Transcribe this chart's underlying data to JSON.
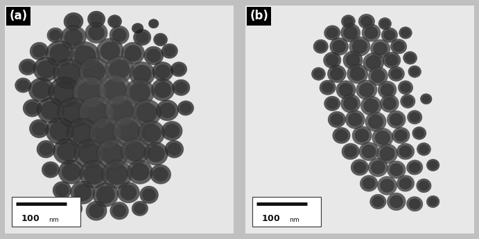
{
  "fig_width": 6.91,
  "fig_height": 3.46,
  "dpi": 100,
  "bg_color": "#c0c0c0",
  "panel_bg": "#e8e8e8",
  "label_a": "(a)",
  "label_b": "(b)",
  "label_bg": "#000000",
  "label_fg": "#ffffff",
  "scalebar_color": "#111111",
  "scalebox_bg": "#ffffff",
  "scalebox_edge": "#333333",
  "particles_a": [
    [
      0.3,
      0.93,
      0.042,
      0.038,
      5,
      0.25
    ],
    [
      0.4,
      0.94,
      0.038,
      0.035,
      -3,
      0.2
    ],
    [
      0.48,
      0.93,
      0.03,
      0.028,
      0,
      0.18
    ],
    [
      0.58,
      0.9,
      0.025,
      0.022,
      5,
      0.15
    ],
    [
      0.65,
      0.92,
      0.022,
      0.02,
      0,
      0.12
    ],
    [
      0.22,
      0.87,
      0.035,
      0.032,
      10,
      0.55
    ],
    [
      0.3,
      0.86,
      0.055,
      0.05,
      8,
      0.7
    ],
    [
      0.4,
      0.88,
      0.048,
      0.045,
      -5,
      0.65
    ],
    [
      0.5,
      0.87,
      0.042,
      0.04,
      0,
      0.6
    ],
    [
      0.6,
      0.86,
      0.038,
      0.035,
      5,
      0.3
    ],
    [
      0.68,
      0.85,
      0.03,
      0.028,
      -5,
      0.22
    ],
    [
      0.15,
      0.8,
      0.04,
      0.038,
      15,
      0.45
    ],
    [
      0.24,
      0.79,
      0.06,
      0.055,
      10,
      0.55
    ],
    [
      0.35,
      0.78,
      0.065,
      0.06,
      -8,
      0.72
    ],
    [
      0.46,
      0.8,
      0.058,
      0.055,
      5,
      0.75
    ],
    [
      0.56,
      0.79,
      0.05,
      0.048,
      0,
      0.65
    ],
    [
      0.65,
      0.78,
      0.042,
      0.04,
      -5,
      0.4
    ],
    [
      0.72,
      0.8,
      0.035,
      0.032,
      8,
      0.28
    ],
    [
      0.1,
      0.73,
      0.038,
      0.035,
      5,
      0.4
    ],
    [
      0.18,
      0.72,
      0.055,
      0.052,
      -5,
      0.5
    ],
    [
      0.28,
      0.7,
      0.068,
      0.065,
      12,
      0.6
    ],
    [
      0.39,
      0.71,
      0.065,
      0.062,
      -3,
      0.8
    ],
    [
      0.5,
      0.72,
      0.062,
      0.058,
      8,
      0.85
    ],
    [
      0.6,
      0.7,
      0.055,
      0.052,
      0,
      0.7
    ],
    [
      0.69,
      0.71,
      0.045,
      0.042,
      -8,
      0.45
    ],
    [
      0.76,
      0.72,
      0.035,
      0.032,
      5,
      0.3
    ],
    [
      0.08,
      0.65,
      0.035,
      0.032,
      0,
      0.35
    ],
    [
      0.16,
      0.63,
      0.055,
      0.052,
      8,
      0.45
    ],
    [
      0.26,
      0.62,
      0.068,
      0.065,
      -5,
      0.55
    ],
    [
      0.37,
      0.62,
      0.072,
      0.068,
      10,
      0.88
    ],
    [
      0.48,
      0.63,
      0.07,
      0.066,
      0,
      0.92
    ],
    [
      0.59,
      0.62,
      0.062,
      0.058,
      -8,
      0.8
    ],
    [
      0.69,
      0.63,
      0.05,
      0.048,
      5,
      0.55
    ],
    [
      0.77,
      0.64,
      0.038,
      0.035,
      0,
      0.35
    ],
    [
      0.12,
      0.55,
      0.04,
      0.038,
      5,
      0.38
    ],
    [
      0.2,
      0.54,
      0.058,
      0.055,
      -3,
      0.5
    ],
    [
      0.3,
      0.53,
      0.068,
      0.065,
      8,
      0.62
    ],
    [
      0.4,
      0.53,
      0.075,
      0.072,
      -5,
      0.85
    ],
    [
      0.51,
      0.54,
      0.072,
      0.068,
      12,
      0.9
    ],
    [
      0.62,
      0.53,
      0.062,
      0.058,
      0,
      0.75
    ],
    [
      0.71,
      0.54,
      0.048,
      0.045,
      -5,
      0.48
    ],
    [
      0.79,
      0.55,
      0.035,
      0.032,
      5,
      0.3
    ],
    [
      0.15,
      0.46,
      0.042,
      0.04,
      0,
      0.35
    ],
    [
      0.24,
      0.45,
      0.06,
      0.058,
      8,
      0.48
    ],
    [
      0.34,
      0.44,
      0.068,
      0.065,
      -5,
      0.6
    ],
    [
      0.44,
      0.44,
      0.07,
      0.068,
      10,
      0.82
    ],
    [
      0.54,
      0.45,
      0.068,
      0.065,
      0,
      0.85
    ],
    [
      0.64,
      0.44,
      0.058,
      0.055,
      -8,
      0.7
    ],
    [
      0.73,
      0.45,
      0.045,
      0.042,
      5,
      0.45
    ],
    [
      0.18,
      0.37,
      0.04,
      0.038,
      5,
      0.35
    ],
    [
      0.27,
      0.36,
      0.058,
      0.055,
      -3,
      0.5
    ],
    [
      0.37,
      0.35,
      0.065,
      0.062,
      8,
      0.65
    ],
    [
      0.47,
      0.35,
      0.068,
      0.065,
      -5,
      0.8
    ],
    [
      0.57,
      0.36,
      0.062,
      0.058,
      12,
      0.75
    ],
    [
      0.66,
      0.35,
      0.052,
      0.05,
      0,
      0.6
    ],
    [
      0.74,
      0.37,
      0.04,
      0.038,
      -5,
      0.38
    ],
    [
      0.2,
      0.28,
      0.038,
      0.035,
      0,
      0.32
    ],
    [
      0.29,
      0.27,
      0.055,
      0.052,
      8,
      0.48
    ],
    [
      0.39,
      0.26,
      0.062,
      0.06,
      -5,
      0.65
    ],
    [
      0.49,
      0.26,
      0.065,
      0.062,
      10,
      0.72
    ],
    [
      0.59,
      0.27,
      0.055,
      0.052,
      0,
      0.62
    ],
    [
      0.68,
      0.26,
      0.045,
      0.042,
      -8,
      0.48
    ],
    [
      0.25,
      0.19,
      0.04,
      0.038,
      5,
      0.35
    ],
    [
      0.34,
      0.18,
      0.052,
      0.05,
      -3,
      0.52
    ],
    [
      0.44,
      0.17,
      0.055,
      0.052,
      8,
      0.62
    ],
    [
      0.54,
      0.18,
      0.048,
      0.045,
      0,
      0.55
    ],
    [
      0.63,
      0.17,
      0.04,
      0.038,
      -5,
      0.42
    ],
    [
      0.3,
      0.11,
      0.038,
      0.035,
      0,
      0.4
    ],
    [
      0.4,
      0.1,
      0.045,
      0.042,
      8,
      0.52
    ],
    [
      0.5,
      0.1,
      0.04,
      0.038,
      -5,
      0.48
    ],
    [
      0.59,
      0.11,
      0.035,
      0.032,
      5,
      0.38
    ]
  ],
  "particles_b": [
    [
      0.45,
      0.93,
      0.03,
      0.028,
      5,
      0.4
    ],
    [
      0.53,
      0.93,
      0.035,
      0.032,
      -3,
      0.55
    ],
    [
      0.61,
      0.92,
      0.028,
      0.026,
      0,
      0.35
    ],
    [
      0.38,
      0.88,
      0.035,
      0.032,
      8,
      0.45
    ],
    [
      0.46,
      0.88,
      0.042,
      0.04,
      -5,
      0.6
    ],
    [
      0.55,
      0.88,
      0.04,
      0.038,
      0,
      0.72
    ],
    [
      0.63,
      0.87,
      0.035,
      0.032,
      5,
      0.55
    ],
    [
      0.7,
      0.88,
      0.028,
      0.026,
      -3,
      0.35
    ],
    [
      0.33,
      0.82,
      0.032,
      0.03,
      5,
      0.4
    ],
    [
      0.41,
      0.82,
      0.04,
      0.038,
      -5,
      0.55
    ],
    [
      0.5,
      0.82,
      0.045,
      0.042,
      8,
      0.75
    ],
    [
      0.59,
      0.81,
      0.042,
      0.04,
      0,
      0.8
    ],
    [
      0.67,
      0.82,
      0.035,
      0.032,
      -5,
      0.5
    ],
    [
      0.38,
      0.76,
      0.038,
      0.035,
      5,
      0.45
    ],
    [
      0.47,
      0.76,
      0.042,
      0.04,
      -3,
      0.6
    ],
    [
      0.56,
      0.75,
      0.045,
      0.042,
      8,
      0.7
    ],
    [
      0.64,
      0.76,
      0.038,
      0.035,
      0,
      0.5
    ],
    [
      0.72,
      0.77,
      0.03,
      0.028,
      -5,
      0.35
    ],
    [
      0.32,
      0.7,
      0.03,
      0.028,
      0,
      0.38
    ],
    [
      0.4,
      0.7,
      0.04,
      0.038,
      5,
      0.55
    ],
    [
      0.49,
      0.7,
      0.045,
      0.042,
      -5,
      0.72
    ],
    [
      0.58,
      0.69,
      0.042,
      0.04,
      8,
      0.8
    ],
    [
      0.66,
      0.7,
      0.035,
      0.032,
      0,
      0.55
    ],
    [
      0.74,
      0.71,
      0.028,
      0.026,
      -3,
      0.38
    ],
    [
      0.36,
      0.64,
      0.035,
      0.032,
      5,
      0.45
    ],
    [
      0.44,
      0.63,
      0.042,
      0.04,
      -5,
      0.62
    ],
    [
      0.53,
      0.63,
      0.045,
      0.042,
      8,
      0.78
    ],
    [
      0.62,
      0.63,
      0.04,
      0.038,
      0,
      0.72
    ],
    [
      0.7,
      0.64,
      0.032,
      0.03,
      -5,
      0.48
    ],
    [
      0.38,
      0.57,
      0.035,
      0.032,
      0,
      0.42
    ],
    [
      0.46,
      0.57,
      0.042,
      0.04,
      5,
      0.65
    ],
    [
      0.55,
      0.56,
      0.045,
      0.042,
      -3,
      0.8
    ],
    [
      0.63,
      0.57,
      0.04,
      0.038,
      8,
      0.75
    ],
    [
      0.71,
      0.58,
      0.032,
      0.03,
      0,
      0.48
    ],
    [
      0.79,
      0.59,
      0.025,
      0.023,
      -5,
      0.32
    ],
    [
      0.4,
      0.5,
      0.038,
      0.035,
      5,
      0.48
    ],
    [
      0.48,
      0.5,
      0.042,
      0.04,
      -5,
      0.7
    ],
    [
      0.57,
      0.49,
      0.045,
      0.042,
      8,
      0.82
    ],
    [
      0.66,
      0.5,
      0.04,
      0.038,
      0,
      0.68
    ],
    [
      0.74,
      0.51,
      0.032,
      0.03,
      -3,
      0.45
    ],
    [
      0.42,
      0.43,
      0.038,
      0.035,
      0,
      0.45
    ],
    [
      0.51,
      0.43,
      0.042,
      0.04,
      5,
      0.72
    ],
    [
      0.6,
      0.42,
      0.045,
      0.042,
      -5,
      0.85
    ],
    [
      0.68,
      0.43,
      0.038,
      0.035,
      8,
      0.65
    ],
    [
      0.76,
      0.44,
      0.03,
      0.028,
      0,
      0.42
    ],
    [
      0.46,
      0.36,
      0.038,
      0.035,
      5,
      0.5
    ],
    [
      0.54,
      0.36,
      0.042,
      0.04,
      -3,
      0.78
    ],
    [
      0.62,
      0.35,
      0.045,
      0.042,
      8,
      0.82
    ],
    [
      0.7,
      0.36,
      0.038,
      0.035,
      0,
      0.62
    ],
    [
      0.78,
      0.37,
      0.03,
      0.028,
      -5,
      0.4
    ],
    [
      0.5,
      0.29,
      0.038,
      0.035,
      0,
      0.55
    ],
    [
      0.58,
      0.29,
      0.042,
      0.04,
      5,
      0.78
    ],
    [
      0.66,
      0.28,
      0.04,
      0.038,
      -5,
      0.8
    ],
    [
      0.74,
      0.29,
      0.035,
      0.032,
      8,
      0.55
    ],
    [
      0.82,
      0.3,
      0.028,
      0.026,
      0,
      0.35
    ],
    [
      0.54,
      0.22,
      0.038,
      0.035,
      5,
      0.6
    ],
    [
      0.62,
      0.21,
      0.042,
      0.04,
      -3,
      0.82
    ],
    [
      0.7,
      0.22,
      0.038,
      0.035,
      8,
      0.7
    ],
    [
      0.78,
      0.21,
      0.032,
      0.03,
      0,
      0.48
    ],
    [
      0.58,
      0.14,
      0.035,
      0.032,
      0,
      0.55
    ],
    [
      0.66,
      0.14,
      0.04,
      0.038,
      5,
      0.75
    ],
    [
      0.74,
      0.13,
      0.035,
      0.032,
      -5,
      0.62
    ],
    [
      0.82,
      0.14,
      0.028,
      0.026,
      8,
      0.4
    ]
  ]
}
